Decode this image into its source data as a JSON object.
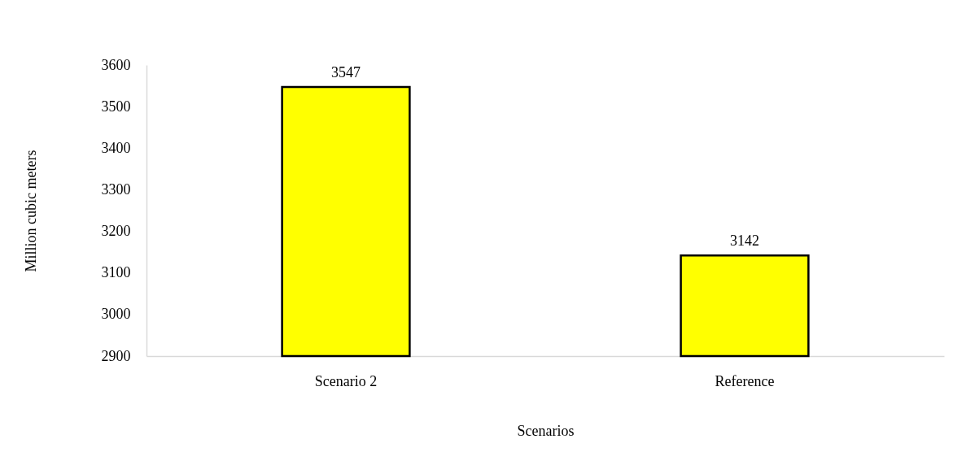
{
  "chart_data": {
    "type": "bar",
    "categories": [
      "Scenario 2",
      "Reference"
    ],
    "values": [
      3547,
      3142
    ],
    "color": "#ffff00",
    "xlabel": "Scenarios",
    "ylabel": "Million cubic meters",
    "ylim": [
      2900,
      3600
    ],
    "yticks": [
      2900,
      3000,
      3100,
      3200,
      3300,
      3400,
      3500,
      3600
    ],
    "data_labels": true
  }
}
